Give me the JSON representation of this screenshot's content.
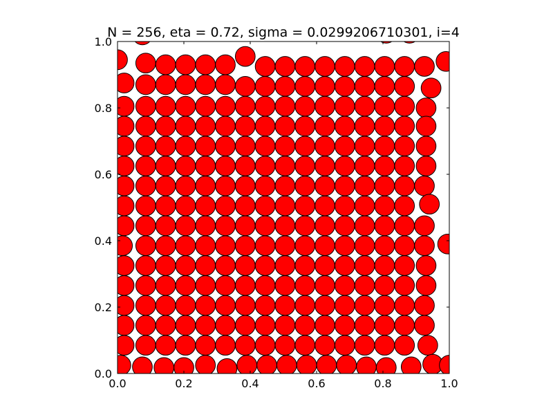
{
  "chart_data": {
    "type": "scatter",
    "title": "N = 256, eta = 0.72, sigma = 0.0299206710301, i=4",
    "xlabel": "",
    "ylabel": "",
    "xlim": [
      0.0,
      1.0
    ],
    "ylim": [
      0.0,
      1.0
    ],
    "xticks": [
      "0.0",
      "0.2",
      "0.4",
      "0.6",
      "0.8",
      "1.0"
    ],
    "yticks": [
      "0.0",
      "0.2",
      "0.4",
      "0.6",
      "0.8",
      "1.0"
    ],
    "grid": false,
    "legend": "none",
    "marker": "disk",
    "disk_radius": 0.0299206710301,
    "face_color": "#ff0000",
    "edge_color": "#000000",
    "points": [
      [
        0.075,
        1.02
      ],
      [
        0.135,
        1.03
      ],
      [
        0.19,
        1.03
      ],
      [
        0.355,
        1.035
      ],
      [
        0.81,
        1.025
      ],
      [
        0.88,
        1.025
      ],
      [
        0.0,
        0.945
      ],
      [
        0.085,
        0.935
      ],
      [
        0.145,
        0.93
      ],
      [
        0.205,
        0.93
      ],
      [
        0.265,
        0.93
      ],
      [
        0.325,
        0.93
      ],
      [
        0.385,
        0.955
      ],
      [
        0.445,
        0.925
      ],
      [
        0.505,
        0.925
      ],
      [
        0.565,
        0.925
      ],
      [
        0.625,
        0.925
      ],
      [
        0.685,
        0.925
      ],
      [
        0.745,
        0.925
      ],
      [
        0.805,
        0.925
      ],
      [
        0.865,
        0.925
      ],
      [
        0.925,
        0.925
      ],
      [
        0.99,
        0.94
      ],
      [
        0.02,
        0.875
      ],
      [
        0.085,
        0.87
      ],
      [
        0.145,
        0.87
      ],
      [
        0.205,
        0.87
      ],
      [
        0.265,
        0.87
      ],
      [
        0.325,
        0.87
      ],
      [
        0.385,
        0.865
      ],
      [
        0.445,
        0.865
      ],
      [
        0.505,
        0.865
      ],
      [
        0.565,
        0.865
      ],
      [
        0.625,
        0.865
      ],
      [
        0.685,
        0.865
      ],
      [
        0.745,
        0.865
      ],
      [
        0.805,
        0.865
      ],
      [
        0.865,
        0.865
      ],
      [
        0.945,
        0.86
      ],
      [
        0.02,
        0.805
      ],
      [
        0.085,
        0.805
      ],
      [
        0.145,
        0.805
      ],
      [
        0.205,
        0.805
      ],
      [
        0.265,
        0.805
      ],
      [
        0.325,
        0.805
      ],
      [
        0.385,
        0.805
      ],
      [
        0.445,
        0.805
      ],
      [
        0.505,
        0.805
      ],
      [
        0.565,
        0.805
      ],
      [
        0.625,
        0.805
      ],
      [
        0.685,
        0.805
      ],
      [
        0.745,
        0.805
      ],
      [
        0.805,
        0.805
      ],
      [
        0.865,
        0.805
      ],
      [
        0.93,
        0.8
      ],
      [
        0.02,
        0.745
      ],
      [
        0.085,
        0.745
      ],
      [
        0.145,
        0.745
      ],
      [
        0.205,
        0.745
      ],
      [
        0.265,
        0.745
      ],
      [
        0.325,
        0.745
      ],
      [
        0.385,
        0.745
      ],
      [
        0.445,
        0.745
      ],
      [
        0.505,
        0.745
      ],
      [
        0.565,
        0.745
      ],
      [
        0.625,
        0.745
      ],
      [
        0.685,
        0.745
      ],
      [
        0.745,
        0.745
      ],
      [
        0.805,
        0.745
      ],
      [
        0.865,
        0.745
      ],
      [
        0.93,
        0.745
      ],
      [
        0.02,
        0.685
      ],
      [
        0.085,
        0.685
      ],
      [
        0.145,
        0.685
      ],
      [
        0.205,
        0.685
      ],
      [
        0.265,
        0.685
      ],
      [
        0.325,
        0.685
      ],
      [
        0.385,
        0.685
      ],
      [
        0.445,
        0.685
      ],
      [
        0.505,
        0.685
      ],
      [
        0.565,
        0.685
      ],
      [
        0.625,
        0.685
      ],
      [
        0.685,
        0.685
      ],
      [
        0.745,
        0.685
      ],
      [
        0.805,
        0.685
      ],
      [
        0.865,
        0.685
      ],
      [
        0.93,
        0.685
      ],
      [
        0.02,
        0.625
      ],
      [
        0.085,
        0.625
      ],
      [
        0.145,
        0.625
      ],
      [
        0.205,
        0.625
      ],
      [
        0.265,
        0.625
      ],
      [
        0.325,
        0.625
      ],
      [
        0.385,
        0.625
      ],
      [
        0.445,
        0.625
      ],
      [
        0.505,
        0.625
      ],
      [
        0.565,
        0.625
      ],
      [
        0.625,
        0.625
      ],
      [
        0.685,
        0.625
      ],
      [
        0.745,
        0.625
      ],
      [
        0.805,
        0.625
      ],
      [
        0.865,
        0.625
      ],
      [
        0.93,
        0.625
      ],
      [
        0.02,
        0.565
      ],
      [
        0.085,
        0.565
      ],
      [
        0.145,
        0.565
      ],
      [
        0.205,
        0.565
      ],
      [
        0.265,
        0.565
      ],
      [
        0.325,
        0.565
      ],
      [
        0.385,
        0.565
      ],
      [
        0.445,
        0.565
      ],
      [
        0.505,
        0.565
      ],
      [
        0.565,
        0.565
      ],
      [
        0.625,
        0.565
      ],
      [
        0.685,
        0.565
      ],
      [
        0.745,
        0.565
      ],
      [
        0.805,
        0.565
      ],
      [
        0.865,
        0.565
      ],
      [
        0.925,
        0.565
      ],
      [
        0.02,
        0.505
      ],
      [
        0.085,
        0.505
      ],
      [
        0.145,
        0.505
      ],
      [
        0.205,
        0.505
      ],
      [
        0.265,
        0.505
      ],
      [
        0.325,
        0.505
      ],
      [
        0.385,
        0.505
      ],
      [
        0.445,
        0.505
      ],
      [
        0.505,
        0.505
      ],
      [
        0.565,
        0.505
      ],
      [
        0.625,
        0.505
      ],
      [
        0.685,
        0.505
      ],
      [
        0.745,
        0.505
      ],
      [
        0.805,
        0.505
      ],
      [
        0.865,
        0.505
      ],
      [
        0.94,
        0.51
      ],
      [
        0.02,
        0.445
      ],
      [
        0.085,
        0.445
      ],
      [
        0.145,
        0.445
      ],
      [
        0.205,
        0.445
      ],
      [
        0.265,
        0.445
      ],
      [
        0.325,
        0.445
      ],
      [
        0.385,
        0.445
      ],
      [
        0.445,
        0.445
      ],
      [
        0.505,
        0.445
      ],
      [
        0.565,
        0.445
      ],
      [
        0.625,
        0.445
      ],
      [
        0.685,
        0.445
      ],
      [
        0.745,
        0.445
      ],
      [
        0.805,
        0.445
      ],
      [
        0.865,
        0.445
      ],
      [
        0.925,
        0.445
      ],
      [
        0.015,
        0.385
      ],
      [
        0.085,
        0.385
      ],
      [
        0.145,
        0.385
      ],
      [
        0.205,
        0.385
      ],
      [
        0.265,
        0.385
      ],
      [
        0.325,
        0.385
      ],
      [
        0.385,
        0.385
      ],
      [
        0.445,
        0.385
      ],
      [
        0.505,
        0.385
      ],
      [
        0.565,
        0.385
      ],
      [
        0.625,
        0.385
      ],
      [
        0.685,
        0.385
      ],
      [
        0.745,
        0.385
      ],
      [
        0.805,
        0.385
      ],
      [
        0.865,
        0.385
      ],
      [
        0.925,
        0.385
      ],
      [
        0.995,
        0.39
      ],
      [
        0.02,
        0.325
      ],
      [
        0.085,
        0.325
      ],
      [
        0.145,
        0.325
      ],
      [
        0.205,
        0.325
      ],
      [
        0.265,
        0.325
      ],
      [
        0.325,
        0.325
      ],
      [
        0.385,
        0.325
      ],
      [
        0.445,
        0.325
      ],
      [
        0.505,
        0.325
      ],
      [
        0.565,
        0.325
      ],
      [
        0.625,
        0.325
      ],
      [
        0.685,
        0.325
      ],
      [
        0.745,
        0.325
      ],
      [
        0.805,
        0.325
      ],
      [
        0.865,
        0.325
      ],
      [
        0.93,
        0.325
      ],
      [
        0.02,
        0.265
      ],
      [
        0.085,
        0.265
      ],
      [
        0.145,
        0.265
      ],
      [
        0.205,
        0.265
      ],
      [
        0.265,
        0.265
      ],
      [
        0.325,
        0.265
      ],
      [
        0.385,
        0.265
      ],
      [
        0.445,
        0.265
      ],
      [
        0.505,
        0.265
      ],
      [
        0.565,
        0.265
      ],
      [
        0.625,
        0.265
      ],
      [
        0.685,
        0.265
      ],
      [
        0.745,
        0.265
      ],
      [
        0.805,
        0.265
      ],
      [
        0.865,
        0.265
      ],
      [
        0.93,
        0.265
      ],
      [
        0.02,
        0.205
      ],
      [
        0.085,
        0.205
      ],
      [
        0.145,
        0.205
      ],
      [
        0.205,
        0.205
      ],
      [
        0.265,
        0.205
      ],
      [
        0.325,
        0.205
      ],
      [
        0.385,
        0.205
      ],
      [
        0.445,
        0.205
      ],
      [
        0.505,
        0.205
      ],
      [
        0.565,
        0.205
      ],
      [
        0.625,
        0.205
      ],
      [
        0.685,
        0.205
      ],
      [
        0.745,
        0.205
      ],
      [
        0.805,
        0.205
      ],
      [
        0.865,
        0.205
      ],
      [
        0.925,
        0.205
      ],
      [
        0.02,
        0.145
      ],
      [
        0.085,
        0.145
      ],
      [
        0.145,
        0.145
      ],
      [
        0.205,
        0.145
      ],
      [
        0.265,
        0.145
      ],
      [
        0.325,
        0.145
      ],
      [
        0.385,
        0.145
      ],
      [
        0.445,
        0.145
      ],
      [
        0.505,
        0.145
      ],
      [
        0.565,
        0.145
      ],
      [
        0.625,
        0.145
      ],
      [
        0.685,
        0.145
      ],
      [
        0.745,
        0.145
      ],
      [
        0.805,
        0.145
      ],
      [
        0.865,
        0.145
      ],
      [
        0.925,
        0.145
      ],
      [
        0.02,
        0.085
      ],
      [
        0.085,
        0.085
      ],
      [
        0.145,
        0.085
      ],
      [
        0.205,
        0.085
      ],
      [
        0.265,
        0.085
      ],
      [
        0.325,
        0.085
      ],
      [
        0.385,
        0.085
      ],
      [
        0.445,
        0.085
      ],
      [
        0.505,
        0.085
      ],
      [
        0.565,
        0.085
      ],
      [
        0.625,
        0.085
      ],
      [
        0.685,
        0.085
      ],
      [
        0.745,
        0.085
      ],
      [
        0.805,
        0.085
      ],
      [
        0.865,
        0.085
      ],
      [
        0.935,
        0.085
      ],
      [
        0.01,
        0.025
      ],
      [
        0.075,
        0.02
      ],
      [
        0.14,
        0.018
      ],
      [
        0.2,
        0.018
      ],
      [
        0.265,
        0.025
      ],
      [
        0.33,
        0.015
      ],
      [
        0.39,
        0.025
      ],
      [
        0.45,
        0.025
      ],
      [
        0.51,
        0.025
      ],
      [
        0.57,
        0.025
      ],
      [
        0.63,
        0.025
      ],
      [
        0.69,
        0.025
      ],
      [
        0.75,
        0.02
      ],
      [
        0.81,
        0.018
      ],
      [
        0.885,
        0.02
      ],
      [
        0.95,
        0.028
      ],
      [
        1.0,
        0.025
      ]
    ]
  }
}
